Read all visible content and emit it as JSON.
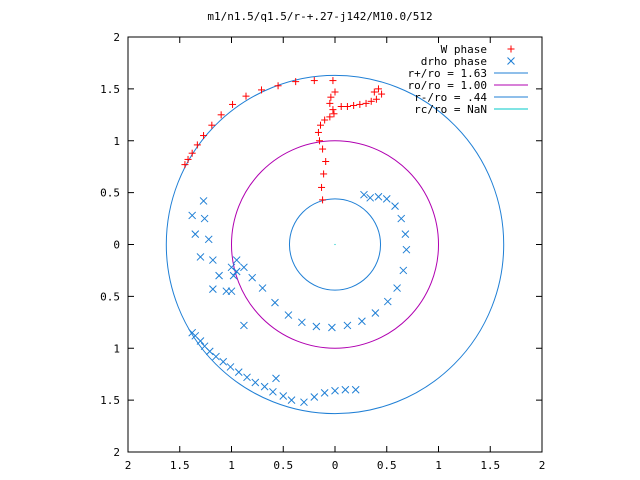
{
  "chart_data": {
    "type": "scatter",
    "title": "m1/n1.5/q1.5/r-+.27-j142/M10.0/512",
    "xlabel": "",
    "ylabel": "",
    "xlim": [
      -2,
      2
    ],
    "ylim": [
      -2,
      2
    ],
    "x_ticks": [
      -2,
      -1.5,
      -1,
      -0.5,
      0,
      0.5,
      1,
      1.5,
      2
    ],
    "y_ticks": [
      -2,
      -1.5,
      -1,
      -0.5,
      0,
      0.5,
      1,
      1.5,
      2
    ],
    "x_tick_labels": [
      "2",
      "1.5",
      "1",
      "0.5",
      "0",
      "0.5",
      "1",
      "1.5",
      "2"
    ],
    "y_tick_labels": [
      "2",
      "1.5",
      "1",
      "0.5",
      "0",
      "0.5",
      "1",
      "1.5",
      "2"
    ],
    "grid": false,
    "legend_position": "top-right",
    "series": [
      {
        "name": "W phase",
        "marker": "plus",
        "color": "#ff0000",
        "x": [
          -1.45,
          -1.42,
          -1.38,
          -1.33,
          -1.27,
          -1.19,
          -1.1,
          -0.99,
          -0.86,
          -0.71,
          -0.55,
          -0.38,
          -0.2,
          -0.02,
          -0.12,
          -0.13,
          -0.11,
          -0.09,
          -0.12,
          -0.15,
          -0.16,
          -0.14,
          -0.1,
          -0.05,
          -0.01,
          -0.02,
          -0.05,
          -0.04,
          0.0,
          0.06,
          0.12,
          0.18,
          0.24,
          0.3,
          0.35,
          0.4,
          0.45,
          0.42,
          0.38
        ],
        "y": [
          0.77,
          0.82,
          0.88,
          0.96,
          1.05,
          1.15,
          1.25,
          1.35,
          1.43,
          1.49,
          1.53,
          1.57,
          1.58,
          1.58,
          0.43,
          0.55,
          0.68,
          0.8,
          0.92,
          1.0,
          1.08,
          1.15,
          1.2,
          1.23,
          1.26,
          1.3,
          1.36,
          1.42,
          1.47,
          1.33,
          1.33,
          1.34,
          1.35,
          1.36,
          1.38,
          1.4,
          1.45,
          1.5,
          1.47
        ]
      },
      {
        "name": "drho phase",
        "marker": "cross",
        "color": "#1f7fd5",
        "x": [
          -1.27,
          -1.26,
          -1.22,
          -1.18,
          -1.12,
          -1.05,
          -1.0,
          -0.98,
          -0.95,
          -0.88,
          -0.8,
          -0.7,
          -0.58,
          -0.45,
          -0.32,
          -0.18,
          -0.03,
          0.12,
          0.26,
          0.39,
          0.51,
          0.6,
          0.66,
          0.69,
          0.68,
          0.64,
          0.58,
          0.5,
          0.42,
          0.34,
          0.28,
          -1.38,
          -1.35,
          -1.3,
          -1.26,
          -1.21,
          -1.15,
          -1.08,
          -1.01,
          -0.93,
          -0.85,
          -0.77,
          -0.68,
          -0.6,
          -0.5,
          -0.42,
          -0.3,
          -0.2,
          -0.1,
          0.0,
          0.1,
          0.2,
          -1.38,
          -1.35,
          -1.3,
          -1.18,
          -0.88,
          -0.57,
          -1.0,
          -0.95
        ],
        "y": [
          0.42,
          0.25,
          0.05,
          -0.15,
          -0.3,
          -0.45,
          -0.45,
          -0.3,
          -0.15,
          -0.22,
          -0.32,
          -0.42,
          -0.56,
          -0.68,
          -0.75,
          -0.79,
          -0.8,
          -0.78,
          -0.74,
          -0.66,
          -0.55,
          -0.42,
          -0.25,
          -0.05,
          0.1,
          0.25,
          0.37,
          0.44,
          0.46,
          0.45,
          0.48,
          -0.85,
          -0.88,
          -0.93,
          -0.98,
          -1.03,
          -1.08,
          -1.13,
          -1.18,
          -1.23,
          -1.28,
          -1.33,
          -1.37,
          -1.42,
          -1.46,
          -1.5,
          -1.52,
          -1.47,
          -1.43,
          -1.41,
          -1.4,
          -1.4,
          0.28,
          0.1,
          -0.12,
          -0.43,
          -0.78,
          -1.29,
          -0.22,
          -0.26
        ]
      },
      {
        "name": "r+/ro = 1.63",
        "type": "circle",
        "radius": 1.63,
        "color": "#1f7fd5"
      },
      {
        "name": "ro/ro = 1.00",
        "type": "circle",
        "radius": 1.0,
        "color": "#b000b0"
      },
      {
        "name": "r-/ro = .44",
        "type": "circle",
        "radius": 0.44,
        "color": "#1f7fd5"
      },
      {
        "name": "rc/ro = NaN",
        "type": "circle",
        "radius": null,
        "color": "#00c8c8"
      }
    ]
  }
}
